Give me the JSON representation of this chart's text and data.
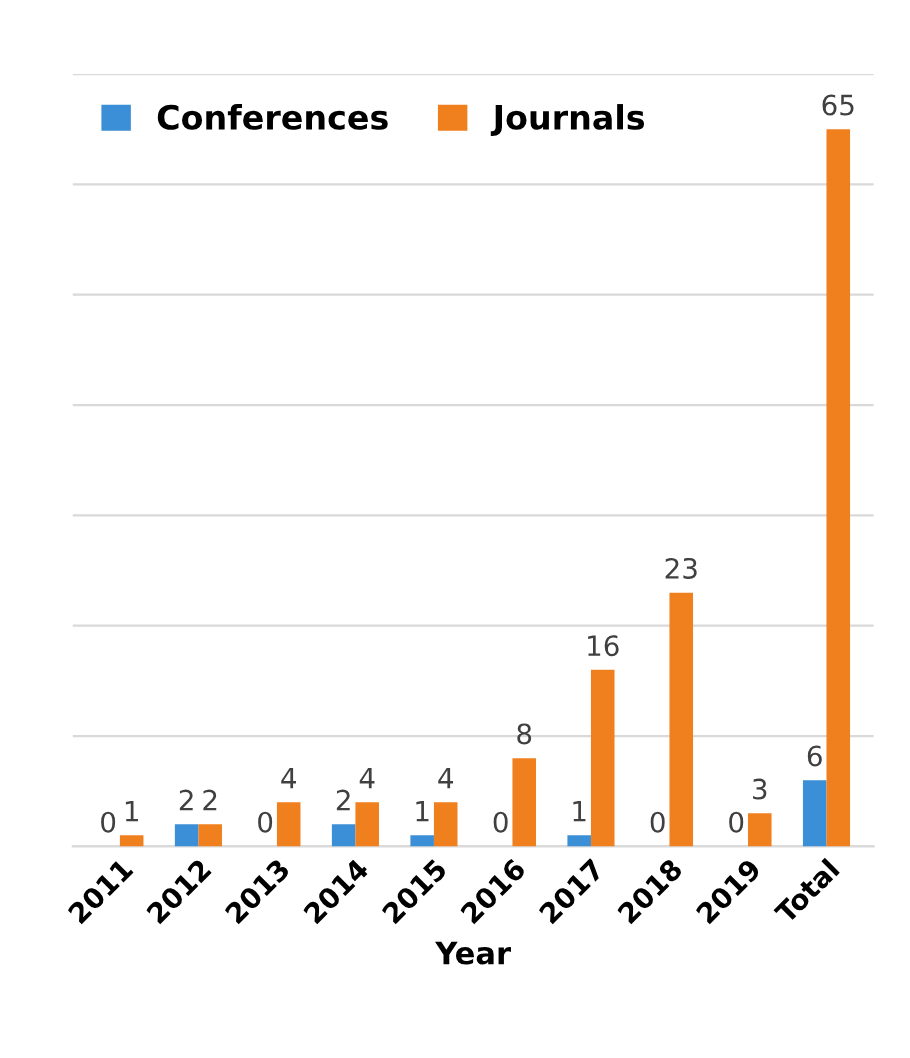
{
  "chart_data": {
    "type": "bar",
    "xlabel": "Year",
    "categories": [
      "2011",
      "2012",
      "2013",
      "2014",
      "2015",
      "2016",
      "2017",
      "2018",
      "2019",
      "Total"
    ],
    "series": [
      {
        "name": "Conferences",
        "color": "#3a8fd6",
        "values": [
          0,
          2,
          0,
          2,
          1,
          0,
          1,
          0,
          0,
          6
        ]
      },
      {
        "name": "Journals",
        "color": "#f07f1d",
        "values": [
          1,
          2,
          4,
          4,
          4,
          8,
          16,
          23,
          3,
          65
        ]
      }
    ],
    "ylim": [
      0,
      70
    ],
    "yticks": [
      {
        "value": 0,
        "label": null
      },
      {
        "value": 10,
        "label": null
      },
      {
        "value": 20,
        "label": null
      },
      {
        "value": 30,
        "label": null
      },
      {
        "value": 40,
        "label": null
      },
      {
        "value": 50,
        "label": null
      },
      {
        "value": 60,
        "label": null
      },
      {
        "value": 70,
        "label": null
      }
    ],
    "grid": "y",
    "legend": "top left",
    "data_labels": true,
    "tick_labels": "x"
  }
}
